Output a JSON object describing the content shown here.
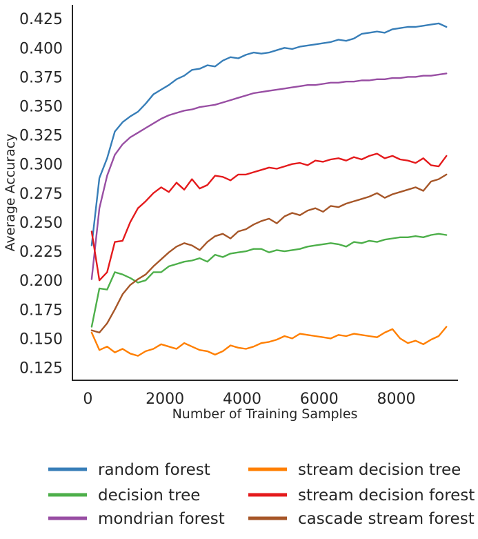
{
  "chart_data": {
    "type": "line",
    "title": "",
    "xlabel": "Number of Training Samples",
    "ylabel": "Average Accuracy",
    "xlim": [
      -400,
      9600
    ],
    "ylim": [
      0.114,
      0.437
    ],
    "xticks": [
      0,
      2000,
      4000,
      6000,
      8000
    ],
    "xtick_labels": [
      "0",
      "2000",
      "4000",
      "6000",
      "8000"
    ],
    "yticks": [
      0.125,
      0.15,
      0.175,
      0.2,
      0.225,
      0.25,
      0.275,
      0.3,
      0.325,
      0.35,
      0.375,
      0.4,
      0.425
    ],
    "ytick_labels": [
      "0.125",
      "0.150",
      "0.175",
      "0.200",
      "0.225",
      "0.250",
      "0.275",
      "0.300",
      "0.325",
      "0.350",
      "0.375",
      "0.400",
      "0.425"
    ],
    "grid": false,
    "legend_position": "bottom, outside",
    "series": [
      {
        "name": "random forest",
        "color": "#377eb8",
        "x": [
          100,
          300,
          500,
          700,
          900,
          1100,
          1300,
          1500,
          1700,
          1900,
          2100,
          2300,
          2500,
          2700,
          2900,
          3100,
          3300,
          3500,
          3700,
          3900,
          4100,
          4300,
          4500,
          4700,
          4900,
          5100,
          5300,
          5500,
          5700,
          5900,
          6100,
          6300,
          6500,
          6700,
          6900,
          7100,
          7300,
          7500,
          7700,
          7900,
          8100,
          8300,
          8500,
          8700,
          8900,
          9100,
          9300
        ],
        "y": [
          0.23,
          0.288,
          0.305,
          0.328,
          0.336,
          0.341,
          0.345,
          0.352,
          0.36,
          0.364,
          0.368,
          0.373,
          0.376,
          0.381,
          0.382,
          0.385,
          0.384,
          0.389,
          0.392,
          0.391,
          0.394,
          0.396,
          0.395,
          0.396,
          0.398,
          0.4,
          0.399,
          0.401,
          0.402,
          0.403,
          0.404,
          0.405,
          0.407,
          0.406,
          0.408,
          0.412,
          0.413,
          0.414,
          0.413,
          0.416,
          0.417,
          0.418,
          0.418,
          0.419,
          0.42,
          0.421,
          0.418
        ]
      },
      {
        "name": "decision tree",
        "color": "#4daf4a",
        "x": [
          100,
          300,
          500,
          700,
          900,
          1100,
          1300,
          1500,
          1700,
          1900,
          2100,
          2300,
          2500,
          2700,
          2900,
          3100,
          3300,
          3500,
          3700,
          3900,
          4100,
          4300,
          4500,
          4700,
          4900,
          5100,
          5300,
          5500,
          5700,
          5900,
          6100,
          6300,
          6500,
          6700,
          6900,
          7100,
          7300,
          7500,
          7700,
          7900,
          8100,
          8300,
          8500,
          8700,
          8900,
          9100,
          9300
        ],
        "y": [
          0.16,
          0.193,
          0.192,
          0.207,
          0.205,
          0.202,
          0.198,
          0.2,
          0.207,
          0.207,
          0.212,
          0.214,
          0.216,
          0.217,
          0.219,
          0.216,
          0.222,
          0.22,
          0.223,
          0.224,
          0.225,
          0.227,
          0.227,
          0.224,
          0.226,
          0.225,
          0.226,
          0.227,
          0.229,
          0.23,
          0.231,
          0.232,
          0.231,
          0.229,
          0.233,
          0.232,
          0.234,
          0.233,
          0.235,
          0.236,
          0.237,
          0.237,
          0.238,
          0.237,
          0.239,
          0.24,
          0.239
        ]
      },
      {
        "name": "mondrian forest",
        "color": "#984ea3",
        "x": [
          100,
          300,
          500,
          700,
          900,
          1100,
          1300,
          1500,
          1700,
          1900,
          2100,
          2300,
          2500,
          2700,
          2900,
          3100,
          3300,
          3500,
          3700,
          3900,
          4100,
          4300,
          4500,
          4700,
          4900,
          5100,
          5300,
          5500,
          5700,
          5900,
          6100,
          6300,
          6500,
          6700,
          6900,
          7100,
          7300,
          7500,
          7700,
          7900,
          8100,
          8300,
          8500,
          8700,
          8900,
          9100,
          9300
        ],
        "y": [
          0.201,
          0.262,
          0.29,
          0.308,
          0.317,
          0.323,
          0.327,
          0.331,
          0.335,
          0.339,
          0.342,
          0.344,
          0.346,
          0.347,
          0.349,
          0.35,
          0.351,
          0.353,
          0.355,
          0.357,
          0.359,
          0.361,
          0.362,
          0.363,
          0.364,
          0.365,
          0.366,
          0.367,
          0.368,
          0.368,
          0.369,
          0.37,
          0.37,
          0.371,
          0.371,
          0.372,
          0.372,
          0.373,
          0.373,
          0.374,
          0.374,
          0.375,
          0.375,
          0.376,
          0.376,
          0.377,
          0.378
        ]
      },
      {
        "name": "stream decision tree",
        "color": "#ff7f00",
        "x": [
          100,
          300,
          500,
          700,
          900,
          1100,
          1300,
          1500,
          1700,
          1900,
          2100,
          2300,
          2500,
          2700,
          2900,
          3100,
          3300,
          3500,
          3700,
          3900,
          4100,
          4300,
          4500,
          4700,
          4900,
          5100,
          5300,
          5500,
          5700,
          5900,
          6100,
          6300,
          6500,
          6700,
          6900,
          7100,
          7300,
          7500,
          7700,
          7900,
          8100,
          8300,
          8500,
          8700,
          8900,
          9100,
          9300
        ],
        "y": [
          0.155,
          0.14,
          0.143,
          0.138,
          0.141,
          0.137,
          0.135,
          0.139,
          0.141,
          0.145,
          0.143,
          0.141,
          0.146,
          0.143,
          0.14,
          0.139,
          0.136,
          0.139,
          0.144,
          0.142,
          0.141,
          0.143,
          0.146,
          0.147,
          0.149,
          0.152,
          0.15,
          0.154,
          0.153,
          0.152,
          0.151,
          0.15,
          0.153,
          0.152,
          0.154,
          0.153,
          0.152,
          0.151,
          0.155,
          0.158,
          0.15,
          0.146,
          0.148,
          0.145,
          0.149,
          0.152,
          0.16
        ]
      },
      {
        "name": "stream decision forest",
        "color": "#e41a1c",
        "x": [
          100,
          300,
          500,
          700,
          900,
          1100,
          1300,
          1500,
          1700,
          1900,
          2100,
          2300,
          2500,
          2700,
          2900,
          3100,
          3300,
          3500,
          3700,
          3900,
          4100,
          4300,
          4500,
          4700,
          4900,
          5100,
          5300,
          5500,
          5700,
          5900,
          6100,
          6300,
          6500,
          6700,
          6900,
          7100,
          7300,
          7500,
          7700,
          7900,
          8100,
          8300,
          8500,
          8700,
          8900,
          9100,
          9300
        ],
        "y": [
          0.242,
          0.2,
          0.207,
          0.233,
          0.234,
          0.25,
          0.262,
          0.268,
          0.275,
          0.28,
          0.276,
          0.284,
          0.278,
          0.287,
          0.279,
          0.282,
          0.29,
          0.289,
          0.286,
          0.291,
          0.291,
          0.293,
          0.295,
          0.297,
          0.296,
          0.298,
          0.3,
          0.301,
          0.299,
          0.303,
          0.302,
          0.304,
          0.305,
          0.303,
          0.306,
          0.304,
          0.307,
          0.309,
          0.305,
          0.307,
          0.304,
          0.303,
          0.301,
          0.305,
          0.299,
          0.298,
          0.307
        ]
      },
      {
        "name": "cascade stream forest",
        "color": "#a65628",
        "x": [
          100,
          300,
          500,
          700,
          900,
          1100,
          1300,
          1500,
          1700,
          1900,
          2100,
          2300,
          2500,
          2700,
          2900,
          3100,
          3300,
          3500,
          3700,
          3900,
          4100,
          4300,
          4500,
          4700,
          4900,
          5100,
          5300,
          5500,
          5700,
          5900,
          6100,
          6300,
          6500,
          6700,
          6900,
          7100,
          7300,
          7500,
          7700,
          7900,
          8100,
          8300,
          8500,
          8700,
          8900,
          9100,
          9300
        ],
        "y": [
          0.157,
          0.155,
          0.163,
          0.175,
          0.188,
          0.196,
          0.201,
          0.205,
          0.212,
          0.218,
          0.224,
          0.229,
          0.232,
          0.23,
          0.226,
          0.233,
          0.238,
          0.24,
          0.236,
          0.242,
          0.244,
          0.248,
          0.251,
          0.253,
          0.249,
          0.255,
          0.258,
          0.256,
          0.26,
          0.262,
          0.259,
          0.264,
          0.263,
          0.266,
          0.268,
          0.27,
          0.272,
          0.275,
          0.271,
          0.274,
          0.276,
          0.278,
          0.28,
          0.277,
          0.285,
          0.287,
          0.291
        ]
      }
    ]
  }
}
